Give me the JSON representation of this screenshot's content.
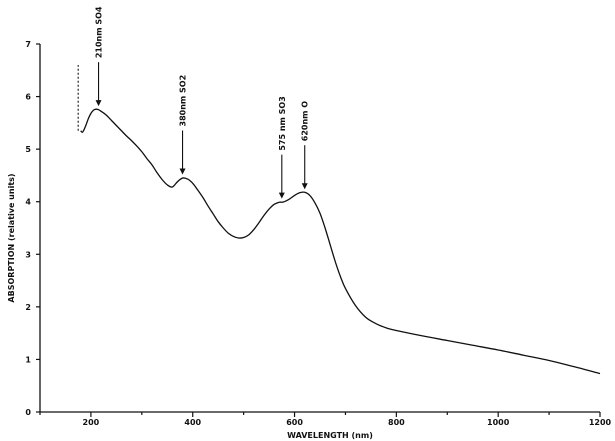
{
  "chart_data": {
    "type": "line",
    "title": "",
    "xlabel": "WAVELENGTH (nm)",
    "ylabel": "ABSORPTION (relative units)",
    "xlim": [
      100,
      1200
    ],
    "ylim": [
      0,
      7
    ],
    "x_ticks": [
      200,
      400,
      600,
      800,
      1000,
      1200
    ],
    "y_ticks": [
      0,
      1,
      2,
      3,
      4,
      5,
      6,
      7
    ],
    "grid": false,
    "series": [
      {
        "x": [
          180,
          183,
          186,
          190,
          195,
          200,
          205,
          210,
          215,
          220,
          230,
          240,
          250,
          260,
          270,
          280,
          290,
          300,
          310,
          320,
          330,
          340,
          350,
          360,
          370,
          380,
          390,
          400,
          410,
          420,
          430,
          440,
          450,
          460,
          470,
          480,
          490,
          500,
          510,
          520,
          530,
          540,
          550,
          560,
          570,
          575,
          580,
          590,
          600,
          610,
          620,
          630,
          640,
          650,
          660,
          670,
          680,
          690,
          700,
          720,
          740,
          760,
          780,
          800,
          850,
          900,
          950,
          1000,
          1050,
          1100,
          1150,
          1200
        ],
        "y": [
          5.35,
          5.32,
          5.36,
          5.45,
          5.58,
          5.68,
          5.74,
          5.76,
          5.75,
          5.72,
          5.65,
          5.55,
          5.45,
          5.35,
          5.25,
          5.16,
          5.06,
          4.95,
          4.82,
          4.7,
          4.55,
          4.42,
          4.32,
          4.28,
          4.38,
          4.45,
          4.43,
          4.35,
          4.22,
          4.08,
          3.92,
          3.77,
          3.62,
          3.5,
          3.4,
          3.34,
          3.31,
          3.32,
          3.37,
          3.47,
          3.6,
          3.74,
          3.86,
          3.95,
          3.99,
          3.99,
          4.0,
          4.05,
          4.12,
          4.17,
          4.18,
          4.12,
          3.98,
          3.78,
          3.5,
          3.18,
          2.86,
          2.58,
          2.35,
          2.02,
          1.8,
          1.68,
          1.6,
          1.55,
          1.45,
          1.36,
          1.27,
          1.18,
          1.08,
          0.98,
          0.86,
          0.73
        ]
      }
    ],
    "dashed_segment": {
      "x": 175,
      "y": [
        5.35,
        6.6
      ]
    },
    "annotations": [
      {
        "text": "210nm SO4",
        "x": 215,
        "y": 5.78
      },
      {
        "text": "380nm SO2",
        "x": 380,
        "y": 4.48
      },
      {
        "text": "575 nm SO3",
        "x": 575,
        "y": 4.02
      },
      {
        "text": "620nm O",
        "x": 620,
        "y": 4.2
      }
    ]
  }
}
